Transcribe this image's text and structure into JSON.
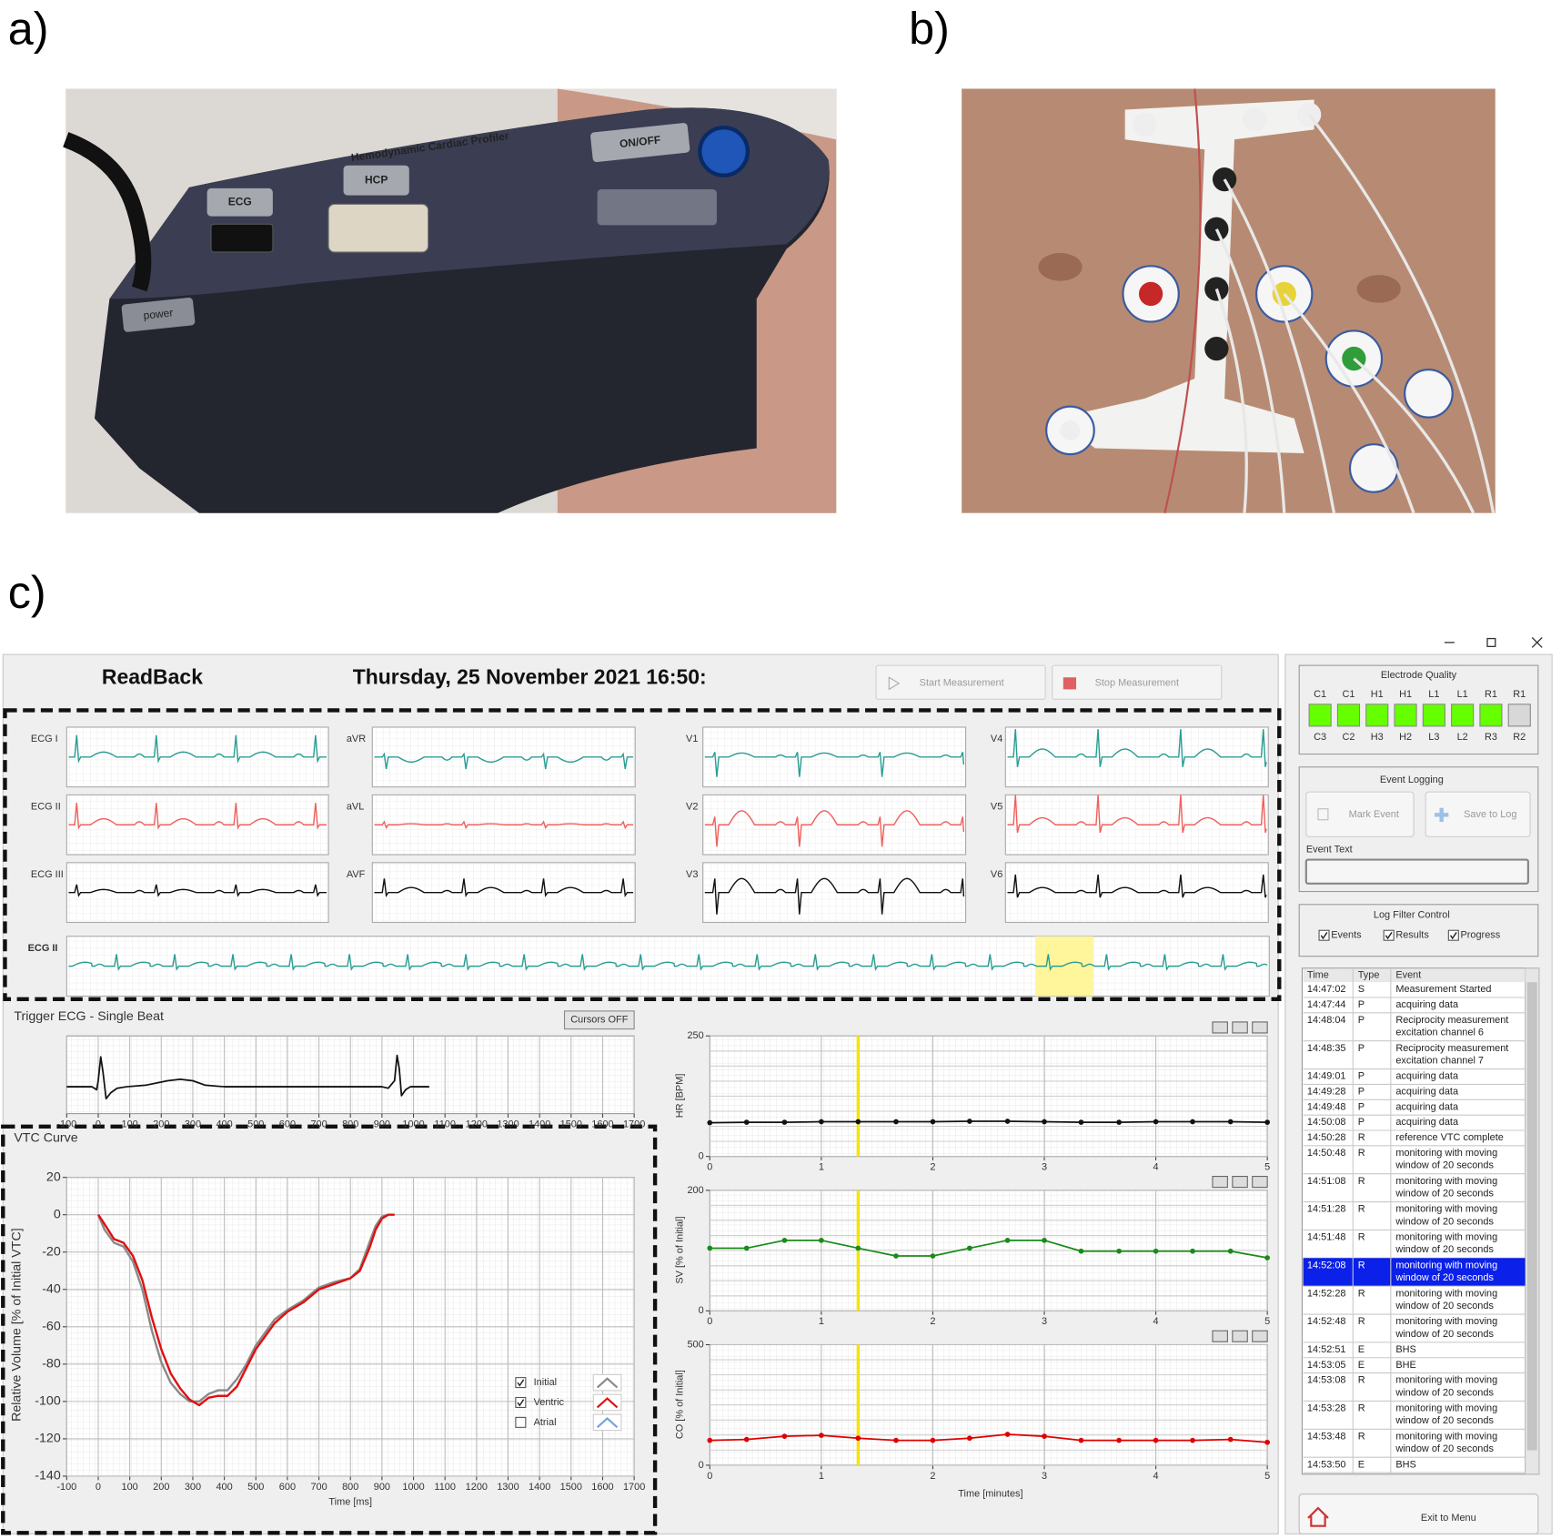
{
  "panel_labels": [
    "a)",
    "b)",
    "c)"
  ],
  "photo_a": {
    "device_title": "Hemodynamic Cardiac Profiler",
    "ecg_port": "ECG",
    "hcp_port": "HCP",
    "switch": "ON/OFF",
    "power": "power"
  },
  "ui": {
    "header": {
      "mode": "ReadBack",
      "datetime": "Thursday, 25 November 2021 16:50:",
      "start_button": "Start Measurement",
      "stop_button": "Stop Measurement"
    },
    "ecg": {
      "leads": [
        [
          "ECG I",
          "aVR",
          "V1",
          "V4"
        ],
        [
          "ECG II",
          "aVL",
          "V2",
          "V5"
        ],
        [
          "ECG III",
          "AVF",
          "V3",
          "V6"
        ]
      ],
      "colors": [
        "#2a9d93",
        "#f0605c",
        "#111111"
      ],
      "rhythm_label": "ECG II",
      "rhythm_color": "#2a9d93"
    },
    "cursors_button": "Cursors OFF",
    "electrode_quality": {
      "title": "Electrode Quality",
      "top": [
        "C1",
        "C1",
        "H1",
        "H1",
        "L1",
        "L1",
        "R1",
        "R1"
      ],
      "bottom": [
        "C3",
        "C2",
        "H3",
        "H2",
        "L3",
        "L2",
        "R3",
        "R2"
      ],
      "ok": [
        true,
        true,
        true,
        true,
        true,
        true,
        true,
        false
      ]
    },
    "event_logging": {
      "title": "Event Logging",
      "mark_button": "Mark Event",
      "save_button": "Save to Log",
      "text_label": "Event Text"
    },
    "log_filter": {
      "title": "Log Filter Control",
      "options": [
        {
          "label": "Events",
          "checked": true
        },
        {
          "label": "Results",
          "checked": true
        },
        {
          "label": "Progress",
          "checked": true
        }
      ]
    },
    "log": {
      "columns": [
        "Time",
        "Type",
        "Event"
      ],
      "selected": 13,
      "rows": [
        [
          "14:47:02",
          "S",
          [
            "Measurement Started"
          ]
        ],
        [
          "14:47:44",
          "P",
          [
            "acquiring data"
          ]
        ],
        [
          "14:48:04",
          "P",
          [
            "Reciprocity measurement",
            "excitation channel 6"
          ]
        ],
        [
          "14:48:35",
          "P",
          [
            "Reciprocity measurement",
            "excitation channel 7"
          ]
        ],
        [
          "14:49:01",
          "P",
          [
            "acquiring data"
          ]
        ],
        [
          "14:49:28",
          "P",
          [
            "acquiring data"
          ]
        ],
        [
          "14:49:48",
          "P",
          [
            "acquiring data"
          ]
        ],
        [
          "14:50:08",
          "P",
          [
            "acquiring data"
          ]
        ],
        [
          "14:50:28",
          "R",
          [
            "reference VTC complete"
          ]
        ],
        [
          "14:50:48",
          "R",
          [
            "monitoring with moving",
            "window of 20 seconds"
          ]
        ],
        [
          "14:51:08",
          "R",
          [
            "monitoring with moving",
            "window of 20 seconds"
          ]
        ],
        [
          "14:51:28",
          "R",
          [
            "monitoring with moving",
            "window of 20 seconds"
          ]
        ],
        [
          "14:51:48",
          "R",
          [
            "monitoring with moving",
            "window of 20 seconds"
          ]
        ],
        [
          "14:52:08",
          "R",
          [
            "monitoring with moving",
            "window of 20 seconds"
          ]
        ],
        [
          "14:52:28",
          "R",
          [
            "monitoring with moving",
            "window of 20 seconds"
          ]
        ],
        [
          "14:52:48",
          "R",
          [
            "monitoring with moving",
            "window of 20 seconds"
          ]
        ],
        [
          "14:52:51",
          "E",
          [
            "BHS"
          ]
        ],
        [
          "14:53:05",
          "E",
          [
            "BHE"
          ]
        ],
        [
          "14:53:08",
          "R",
          [
            "monitoring with moving",
            "window of 20 seconds"
          ]
        ],
        [
          "14:53:28",
          "R",
          [
            "monitoring with moving",
            "window of 20 seconds"
          ]
        ],
        [
          "14:53:48",
          "R",
          [
            "monitoring with moving",
            "window of 20 seconds"
          ]
        ],
        [
          "14:53:50",
          "E",
          [
            "BHS"
          ]
        ]
      ]
    },
    "exit_button": "Exit to Menu"
  },
  "chart_data": [
    {
      "type": "line",
      "title": "Trigger ECG - Single Beat",
      "x": [
        -100,
        -20,
        -5,
        0,
        8,
        15,
        25,
        40,
        60,
        90,
        150,
        220,
        260,
        300,
        340,
        400,
        500,
        700,
        900,
        920,
        940,
        948,
        955,
        962,
        975,
        990,
        1050
      ],
      "values": [
        0,
        0,
        -0.1,
        0.2,
        1.0,
        0.5,
        -0.4,
        -0.2,
        -0.05,
        0,
        0.05,
        0.2,
        0.25,
        0.2,
        0.05,
        0,
        0,
        0,
        0,
        -0.05,
        0.2,
        1.05,
        0.6,
        -0.3,
        -0.1,
        0,
        0
      ],
      "color": "#111111",
      "xlim": [
        -100,
        1700
      ],
      "xticks": [
        -100,
        0,
        100,
        200,
        300,
        400,
        500,
        600,
        700,
        800,
        900,
        1000,
        1100,
        1200,
        1300,
        1400,
        1500,
        1600,
        1700
      ],
      "ylim": [
        -0.9,
        1.7
      ],
      "grid": true
    },
    {
      "type": "line",
      "title": "VTC Curve",
      "x_label": "Time [ms]",
      "y_label": "Relative Volume [% of Initial VTC]",
      "x": [
        0,
        20,
        50,
        80,
        110,
        140,
        170,
        200,
        230,
        260,
        290,
        320,
        350,
        380,
        410,
        440,
        470,
        500,
        530,
        560,
        600,
        650,
        700,
        750,
        800,
        830,
        860,
        880,
        900,
        920,
        940
      ],
      "series": [
        {
          "name": "Initial",
          "color": "#8a8a8a",
          "checked": true,
          "values": [
            0,
            -8,
            -15,
            -17,
            -25,
            -40,
            -62,
            -79,
            -90,
            -96,
            -100,
            -100,
            -96,
            -94,
            -94,
            -88,
            -80,
            -70,
            -63,
            -56,
            -51,
            -46,
            -39,
            -36,
            -34,
            -29,
            -15,
            -6,
            -1,
            0,
            null
          ]
        },
        {
          "name": "Ventric",
          "color": "#e01010",
          "checked": true,
          "values": [
            0,
            -5,
            -13,
            -15,
            -22,
            -35,
            -55,
            -72,
            -85,
            -93,
            -99,
            -102,
            -98,
            -97,
            -97,
            -92,
            -82,
            -72,
            -65,
            -58,
            -52,
            -47,
            -40,
            -37,
            -34,
            -30,
            -18,
            -8,
            -2,
            0,
            0
          ]
        },
        {
          "name": "Atrial",
          "color": "#7aa0e0",
          "checked": false,
          "values": [
            null,
            null,
            null,
            null,
            null,
            null,
            null,
            null,
            null,
            null,
            null,
            null,
            null,
            null,
            null,
            null,
            null,
            null,
            null,
            null,
            null,
            null,
            null,
            null,
            null,
            null,
            null,
            null,
            null,
            null,
            null
          ]
        }
      ],
      "xlim": [
        -100,
        1700
      ],
      "xticks": [
        -100,
        0,
        100,
        200,
        300,
        400,
        500,
        600,
        700,
        800,
        900,
        1000,
        1100,
        1200,
        1300,
        1400,
        1500,
        1600,
        1700
      ],
      "ylim": [
        -140,
        20
      ],
      "yticks": [
        -140,
        -120,
        -100,
        -80,
        -60,
        -40,
        -20,
        0,
        20
      ],
      "grid": true,
      "legend": "lower right"
    },
    {
      "type": "line",
      "y_label": "HR [BPM]",
      "x": [
        0,
        0.33,
        0.67,
        1,
        1.33,
        1.67,
        2,
        2.33,
        2.67,
        3,
        3.33,
        3.67,
        4,
        4.33,
        4.67,
        5
      ],
      "values": [
        70,
        71,
        71,
        72,
        72,
        72,
        72,
        73,
        73,
        72,
        71,
        71,
        72,
        72,
        72,
        71
      ],
      "color": "#111111",
      "markers": true,
      "xlim": [
        0,
        5
      ],
      "xticks": [
        0,
        1,
        2,
        3,
        4,
        5
      ],
      "ylim": [
        0,
        250
      ],
      "yticks": [
        0,
        250
      ],
      "cursor": 1.33,
      "grid": true
    },
    {
      "type": "line",
      "y_label": "SV [% of Initial]",
      "x": [
        0,
        0.33,
        0.67,
        1,
        1.33,
        1.67,
        2,
        2.33,
        2.67,
        3,
        3.33,
        3.67,
        4,
        4.33,
        4.67,
        5
      ],
      "values": [
        104,
        104,
        117,
        117,
        104,
        91,
        91,
        104,
        117,
        117,
        99,
        99,
        99,
        99,
        99,
        88
      ],
      "color": "#1a8a1a",
      "markers": true,
      "xlim": [
        0,
        5
      ],
      "xticks": [
        0,
        1,
        2,
        3,
        4,
        5
      ],
      "ylim": [
        0,
        200
      ],
      "yticks": [
        0,
        200
      ],
      "cursor": 1.33,
      "grid": true
    },
    {
      "type": "line",
      "y_label": "CO [% of Initial]",
      "x_label": "Time [minutes]",
      "x": [
        0,
        0.33,
        0.67,
        1,
        1.33,
        1.67,
        2,
        2.33,
        2.67,
        3,
        3.33,
        3.67,
        4,
        4.33,
        4.67,
        5
      ],
      "values": [
        103,
        107,
        120,
        124,
        112,
        103,
        103,
        112,
        128,
        120,
        103,
        103,
        103,
        103,
        107,
        95
      ],
      "color": "#e00000",
      "markers": true,
      "xlim": [
        0,
        5
      ],
      "xticks": [
        0,
        1,
        2,
        3,
        4,
        5
      ],
      "ylim": [
        0,
        500
      ],
      "yticks": [
        0,
        500
      ],
      "cursor": 1.33,
      "grid": true
    }
  ]
}
